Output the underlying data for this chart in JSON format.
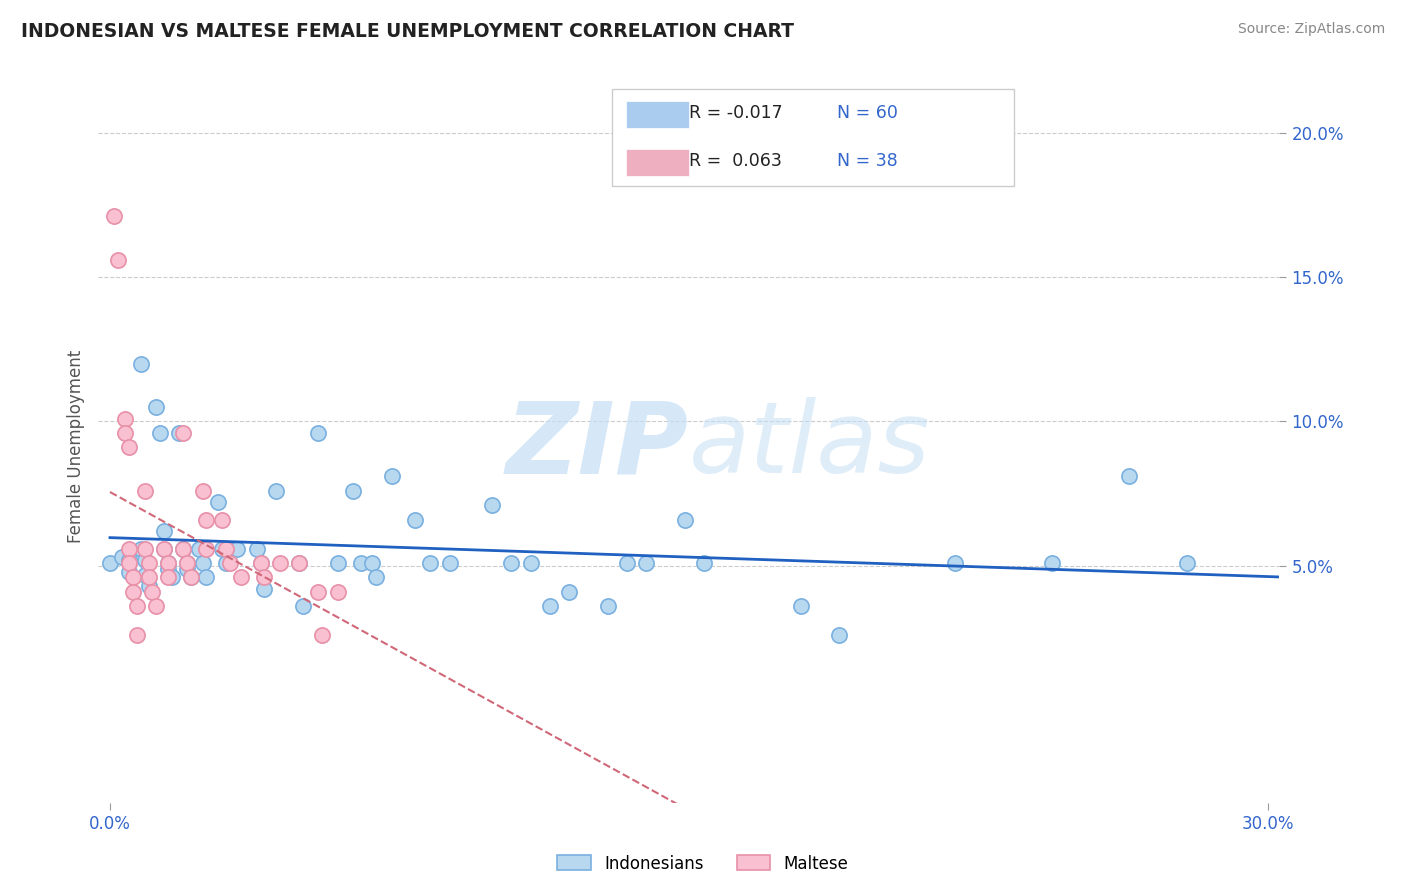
{
  "title": "INDONESIAN VS MALTESE FEMALE UNEMPLOYMENT CORRELATION CHART",
  "source": "Source: ZipAtlas.com",
  "ylabel_label": "Female Unemployment",
  "xlim": [
    -0.003,
    0.303
  ],
  "ylim": [
    -0.032,
    0.215
  ],
  "ytick_positions": [
    0.05,
    0.1,
    0.15,
    0.2
  ],
  "ytick_labels": [
    "5.0%",
    "10.0%",
    "15.0%",
    "20.0%"
  ],
  "xtick_positions": [
    0.0,
    0.3
  ],
  "xtick_labels": [
    "0.0%",
    "30.0%"
  ],
  "indonesian_color_face": "#b8d8f0",
  "indonesian_color_edge": "#7ab0e0",
  "maltese_color_face": "#f8c0d0",
  "maltese_color_edge": "#e890a8",
  "indonesian_line_color": "#2060c0",
  "maltese_line_color": "#d06878",
  "grid_color": "#cccccc",
  "background_color": "#ffffff",
  "watermark_zip": "ZIP",
  "watermark_atlas": "atlas",
  "title_color": "#222222",
  "axis_tick_color": "#3366cc",
  "ylabel_color": "#555555",
  "legend_box_color": "#aaccee",
  "legend_box_color2": "#eeb0c0",
  "indonesian_data": [
    [
      0.0,
      0.051
    ],
    [
      0.003,
      0.053
    ],
    [
      0.005,
      0.052
    ],
    [
      0.005,
      0.048
    ],
    [
      0.008,
      0.12
    ],
    [
      0.008,
      0.056
    ],
    [
      0.009,
      0.052
    ],
    [
      0.009,
      0.047
    ],
    [
      0.01,
      0.043
    ],
    [
      0.012,
      0.105
    ],
    [
      0.013,
      0.096
    ],
    [
      0.014,
      0.062
    ],
    [
      0.014,
      0.056
    ],
    [
      0.015,
      0.051
    ],
    [
      0.015,
      0.049
    ],
    [
      0.016,
      0.046
    ],
    [
      0.018,
      0.096
    ],
    [
      0.019,
      0.056
    ],
    [
      0.02,
      0.051
    ],
    [
      0.02,
      0.049
    ],
    [
      0.021,
      0.046
    ],
    [
      0.023,
      0.056
    ],
    [
      0.024,
      0.051
    ],
    [
      0.025,
      0.046
    ],
    [
      0.028,
      0.072
    ],
    [
      0.029,
      0.056
    ],
    [
      0.03,
      0.051
    ],
    [
      0.033,
      0.056
    ],
    [
      0.038,
      0.056
    ],
    [
      0.039,
      0.051
    ],
    [
      0.04,
      0.042
    ],
    [
      0.043,
      0.076
    ],
    [
      0.049,
      0.051
    ],
    [
      0.05,
      0.036
    ],
    [
      0.054,
      0.096
    ],
    [
      0.059,
      0.051
    ],
    [
      0.063,
      0.076
    ],
    [
      0.065,
      0.051
    ],
    [
      0.068,
      0.051
    ],
    [
      0.069,
      0.046
    ],
    [
      0.073,
      0.081
    ],
    [
      0.079,
      0.066
    ],
    [
      0.083,
      0.051
    ],
    [
      0.088,
      0.051
    ],
    [
      0.099,
      0.071
    ],
    [
      0.104,
      0.051
    ],
    [
      0.109,
      0.051
    ],
    [
      0.114,
      0.036
    ],
    [
      0.119,
      0.041
    ],
    [
      0.129,
      0.036
    ],
    [
      0.134,
      0.051
    ],
    [
      0.139,
      0.051
    ],
    [
      0.149,
      0.066
    ],
    [
      0.154,
      0.051
    ],
    [
      0.179,
      0.036
    ],
    [
      0.189,
      0.026
    ],
    [
      0.219,
      0.051
    ],
    [
      0.244,
      0.051
    ],
    [
      0.264,
      0.081
    ],
    [
      0.279,
      0.051
    ]
  ],
  "maltese_data": [
    [
      0.001,
      0.171
    ],
    [
      0.002,
      0.156
    ],
    [
      0.004,
      0.101
    ],
    [
      0.004,
      0.096
    ],
    [
      0.005,
      0.091
    ],
    [
      0.005,
      0.056
    ],
    [
      0.005,
      0.051
    ],
    [
      0.006,
      0.046
    ],
    [
      0.006,
      0.041
    ],
    [
      0.007,
      0.036
    ],
    [
      0.007,
      0.026
    ],
    [
      0.009,
      0.076
    ],
    [
      0.009,
      0.056
    ],
    [
      0.01,
      0.051
    ],
    [
      0.01,
      0.046
    ],
    [
      0.011,
      0.041
    ],
    [
      0.012,
      0.036
    ],
    [
      0.014,
      0.056
    ],
    [
      0.015,
      0.051
    ],
    [
      0.015,
      0.046
    ],
    [
      0.019,
      0.096
    ],
    [
      0.019,
      0.056
    ],
    [
      0.02,
      0.051
    ],
    [
      0.021,
      0.046
    ],
    [
      0.024,
      0.076
    ],
    [
      0.025,
      0.066
    ],
    [
      0.025,
      0.056
    ],
    [
      0.029,
      0.066
    ],
    [
      0.03,
      0.056
    ],
    [
      0.031,
      0.051
    ],
    [
      0.034,
      0.046
    ],
    [
      0.039,
      0.051
    ],
    [
      0.04,
      0.046
    ],
    [
      0.044,
      0.051
    ],
    [
      0.049,
      0.051
    ],
    [
      0.054,
      0.041
    ],
    [
      0.055,
      0.026
    ],
    [
      0.059,
      0.041
    ]
  ]
}
